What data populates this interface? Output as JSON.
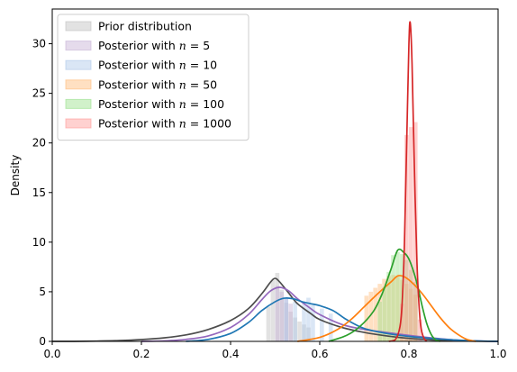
{
  "chart_data": {
    "type": "area",
    "title": "",
    "xlabel": "",
    "ylabel": "Density",
    "xlim": [
      0,
      1
    ],
    "ylim": [
      0,
      33.5
    ],
    "grid": false,
    "legend_position": "upper left",
    "x_ticks": [
      0.0,
      0.2,
      0.4,
      0.6,
      0.8,
      1.0
    ],
    "x_tick_labels": [
      "0.0",
      "0.2",
      "0.4",
      "0.6",
      "0.8",
      "1.0"
    ],
    "y_ticks": [
      0,
      5,
      10,
      15,
      20,
      25,
      30
    ],
    "y_tick_labels": [
      "0",
      "5",
      "10",
      "15",
      "20",
      "25",
      "30"
    ],
    "series": [
      {
        "name": "Prior distribution",
        "legend_prefix": "Prior distribution",
        "legend_n": "",
        "color": "#4d4d4d",
        "fill": "#bfbfbf",
        "curve": [
          [
            0.0,
            0.0
          ],
          [
            0.05,
            0.0
          ],
          [
            0.1,
            0.03
          ],
          [
            0.15,
            0.08
          ],
          [
            0.2,
            0.18
          ],
          [
            0.25,
            0.35
          ],
          [
            0.3,
            0.65
          ],
          [
            0.35,
            1.2
          ],
          [
            0.4,
            2.1
          ],
          [
            0.44,
            3.3
          ],
          [
            0.47,
            4.8
          ],
          [
            0.49,
            6.0
          ],
          [
            0.5,
            6.35
          ],
          [
            0.51,
            6.0
          ],
          [
            0.53,
            4.9
          ],
          [
            0.55,
            3.8
          ],
          [
            0.58,
            2.8
          ],
          [
            0.6,
            2.2
          ],
          [
            0.65,
            1.4
          ],
          [
            0.7,
            0.9
          ],
          [
            0.75,
            0.55
          ],
          [
            0.8,
            0.3
          ],
          [
            0.85,
            0.15
          ],
          [
            0.9,
            0.06
          ],
          [
            0.95,
            0.02
          ],
          [
            1.0,
            0.0
          ]
        ],
        "bars": [
          [
            0.485,
            3.5
          ],
          [
            0.495,
            6.2
          ],
          [
            0.505,
            6.9
          ],
          [
            0.515,
            5.2
          ],
          [
            0.525,
            3.9
          ],
          [
            0.535,
            3.0
          ],
          [
            0.545,
            2.4
          ],
          [
            0.555,
            2.0
          ],
          [
            0.565,
            1.7
          ],
          [
            0.575,
            1.4
          ]
        ]
      },
      {
        "name": "Posterior with n = 5",
        "legend_prefix": "Posterior with ",
        "legend_n": "5",
        "color": "#9467bd",
        "fill": "#c5b0d5",
        "curve": [
          [
            0.2,
            0.0
          ],
          [
            0.25,
            0.05
          ],
          [
            0.3,
            0.2
          ],
          [
            0.35,
            0.55
          ],
          [
            0.4,
            1.4
          ],
          [
            0.44,
            2.7
          ],
          [
            0.47,
            4.2
          ],
          [
            0.49,
            5.1
          ],
          [
            0.51,
            5.45
          ],
          [
            0.53,
            5.1
          ],
          [
            0.55,
            4.3
          ],
          [
            0.58,
            3.3
          ],
          [
            0.6,
            2.7
          ],
          [
            0.65,
            1.7
          ],
          [
            0.7,
            1.2
          ],
          [
            0.75,
            0.9
          ],
          [
            0.8,
            0.6
          ],
          [
            0.85,
            0.35
          ],
          [
            0.9,
            0.15
          ],
          [
            0.95,
            0.05
          ],
          [
            1.0,
            0.0
          ]
        ],
        "bars": [
          [
            0.505,
            5.6
          ],
          [
            0.515,
            5.0
          ],
          [
            0.525,
            4.4
          ],
          [
            0.535,
            3.8
          ]
        ]
      },
      {
        "name": "Posterior with n = 10",
        "legend_prefix": "Posterior with ",
        "legend_n": "10",
        "color": "#1f77b4",
        "fill": "#aec7e8",
        "curve": [
          [
            0.3,
            0.0
          ],
          [
            0.35,
            0.2
          ],
          [
            0.4,
            0.8
          ],
          [
            0.44,
            1.9
          ],
          [
            0.47,
            3.1
          ],
          [
            0.5,
            4.0
          ],
          [
            0.52,
            4.35
          ],
          [
            0.54,
            4.3
          ],
          [
            0.56,
            4.0
          ],
          [
            0.58,
            3.8
          ],
          [
            0.6,
            3.6
          ],
          [
            0.63,
            3.1
          ],
          [
            0.66,
            2.2
          ],
          [
            0.7,
            1.3
          ],
          [
            0.75,
            0.8
          ],
          [
            0.8,
            0.5
          ],
          [
            0.85,
            0.3
          ],
          [
            0.9,
            0.15
          ],
          [
            0.95,
            0.05
          ],
          [
            1.0,
            0.0
          ]
        ],
        "bars": [
          [
            0.525,
            4.4
          ],
          [
            0.545,
            4.0
          ],
          [
            0.565,
            3.8
          ],
          [
            0.575,
            4.4
          ],
          [
            0.585,
            3.7
          ],
          [
            0.605,
            3.3
          ],
          [
            0.625,
            2.8
          ]
        ]
      },
      {
        "name": "Posterior with n = 50",
        "legend_prefix": "Posterior with ",
        "legend_n": "50",
        "color": "#ff7f0e",
        "fill": "#ffbb78",
        "curve": [
          [
            0.55,
            0.0
          ],
          [
            0.6,
            0.4
          ],
          [
            0.64,
            1.2
          ],
          [
            0.67,
            2.2
          ],
          [
            0.7,
            3.5
          ],
          [
            0.73,
            4.8
          ],
          [
            0.76,
            6.0
          ],
          [
            0.775,
            6.6
          ],
          [
            0.79,
            6.5
          ],
          [
            0.81,
            5.8
          ],
          [
            0.83,
            4.8
          ],
          [
            0.85,
            3.6
          ],
          [
            0.87,
            2.4
          ],
          [
            0.89,
            1.4
          ],
          [
            0.91,
            0.7
          ],
          [
            0.93,
            0.2
          ],
          [
            0.95,
            0.0
          ]
        ],
        "bars": [
          [
            0.705,
            4.6
          ],
          [
            0.715,
            5.0
          ],
          [
            0.725,
            5.4
          ],
          [
            0.735,
            5.8
          ],
          [
            0.745,
            6.3
          ],
          [
            0.755,
            6.6
          ],
          [
            0.765,
            6.7
          ],
          [
            0.775,
            6.5
          ],
          [
            0.785,
            6.2
          ],
          [
            0.795,
            5.8
          ],
          [
            0.805,
            5.3
          ],
          [
            0.815,
            4.7
          ]
        ]
      },
      {
        "name": "Posterior with n = 100",
        "legend_prefix": "Posterior with ",
        "legend_n": "100",
        "color": "#2ca02c",
        "fill": "#98df8a",
        "curve": [
          [
            0.62,
            0.0
          ],
          [
            0.66,
            0.6
          ],
          [
            0.69,
            1.5
          ],
          [
            0.72,
            3.0
          ],
          [
            0.74,
            4.8
          ],
          [
            0.76,
            7.3
          ],
          [
            0.775,
            9.2
          ],
          [
            0.79,
            8.9
          ],
          [
            0.8,
            8.3
          ],
          [
            0.81,
            7.1
          ],
          [
            0.82,
            5.5
          ],
          [
            0.83,
            3.5
          ],
          [
            0.84,
            1.8
          ],
          [
            0.85,
            0.7
          ],
          [
            0.86,
            0.15
          ],
          [
            0.87,
            0.0
          ]
        ],
        "bars": [
          [
            0.735,
            4.0
          ],
          [
            0.745,
            5.5
          ],
          [
            0.755,
            7.0
          ],
          [
            0.765,
            8.7
          ],
          [
            0.775,
            9.0
          ],
          [
            0.785,
            8.8
          ],
          [
            0.795,
            8.2
          ],
          [
            0.805,
            7.2
          ],
          [
            0.815,
            6.0
          ]
        ]
      },
      {
        "name": "Posterior with n = 1000",
        "legend_prefix": "Posterior with ",
        "legend_n": "1000",
        "color": "#d62728",
        "fill": "#ff9896",
        "curve": [
          [
            0.755,
            0.0
          ],
          [
            0.77,
            0.2
          ],
          [
            0.78,
            1.5
          ],
          [
            0.785,
            4.0
          ],
          [
            0.79,
            10.0
          ],
          [
            0.795,
            20.0
          ],
          [
            0.8,
            30.0
          ],
          [
            0.803,
            32.1
          ],
          [
            0.807,
            28.0
          ],
          [
            0.812,
            18.0
          ],
          [
            0.818,
            8.0
          ],
          [
            0.825,
            2.2
          ],
          [
            0.832,
            0.5
          ],
          [
            0.84,
            0.0
          ]
        ],
        "bars": [
          [
            0.785,
            3.8
          ],
          [
            0.795,
            20.8
          ],
          [
            0.805,
            21.6
          ],
          [
            0.815,
            22.1
          ],
          [
            0.825,
            2.2
          ]
        ]
      }
    ]
  }
}
